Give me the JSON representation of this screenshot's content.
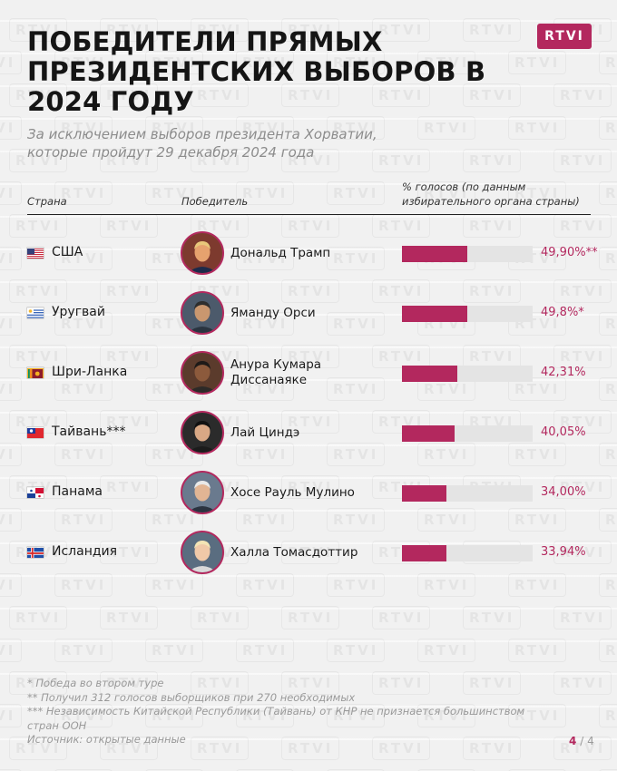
{
  "logo": "RTVI",
  "colors": {
    "accent": "#b3285e",
    "track": "#e4e4e4",
    "background": "#f1f1f1"
  },
  "chart_data": {
    "type": "bar",
    "orientation": "horizontal",
    "title": "ПОБЕДИТЕЛИ ПРЯМЫХ ПРЕЗИДЕНТСКИХ ВЫБОРОВ В 2024 ГОДУ",
    "subtitle": "За исключением выборов президента Хорватии, которые пройдут 29 декабря 2024 года",
    "columns": {
      "country": "Страна",
      "winner": "Победитель",
      "votes": "% голосов (по данным избирательного органа страны)"
    },
    "xlim": [
      0,
      100
    ],
    "rows": [
      {
        "country": "США",
        "flag": "us-flag",
        "winner": "Дональд Трамп",
        "value": 49.9,
        "label": "49,90%**"
      },
      {
        "country": "Уругвай",
        "flag": "uruguay-flag",
        "winner": "Яманду Орси",
        "value": 49.8,
        "label": "49,8%*"
      },
      {
        "country": "Шри-Ланка",
        "flag": "sri-lanka-flag",
        "winner": "Анура Кумара Диссанаяке",
        "value": 42.31,
        "label": "42,31%"
      },
      {
        "country": "Тайвань***",
        "flag": "taiwan-flag",
        "winner": "Лай Циндэ",
        "value": 40.05,
        "label": "40,05%"
      },
      {
        "country": "Панама",
        "flag": "panama-flag",
        "winner": "Хосе Рауль Мулино",
        "value": 34.0,
        "label": "34,00%"
      },
      {
        "country": "Исландия",
        "flag": "iceland-flag",
        "winner": "Халла Томасдоттир",
        "value": 33.94,
        "label": "33,94%"
      }
    ]
  },
  "footnotes": [
    "* Победа во втором туре",
    "** Получил 312 голосов выборщиков при 270 необходимых",
    "*** Независимость Китайской Республики (Тайвань) от КНР не признается большинством стран ООН",
    "Источник: открытые данные"
  ],
  "pagination": {
    "current": "4",
    "separator": "/",
    "total": "4"
  }
}
